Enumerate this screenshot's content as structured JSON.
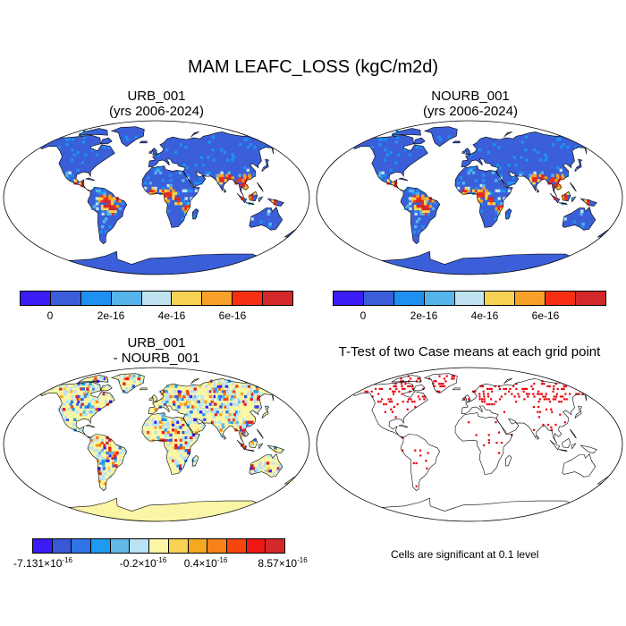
{
  "title": "MAM LEAFC_LOSS (kgC/m2d)",
  "panels": {
    "p1": {
      "line1": "URB_001",
      "line2": "(yrs 2006-2024)"
    },
    "p2": {
      "line1": "NOURB_001",
      "line2": "(yrs 2006-2024)"
    },
    "p3": {
      "line1": "URB_001",
      "line2": "- NOURB_001"
    },
    "p4": {
      "line1": "T-Test of two Case means at each grid point"
    }
  },
  "colorbar_top": {
    "colors": [
      "#3b1cf5",
      "#3a5fd8",
      "#1e90f0",
      "#55b4ea",
      "#bfe3f0",
      "#f8d254",
      "#f7a12a",
      "#f62f12",
      "#d3282b"
    ],
    "labels": [
      "0",
      "2e-16",
      "4e-16",
      "6e-16"
    ]
  },
  "colorbar_diff": {
    "colors": [
      "#3b1cf5",
      "#3958d6",
      "#2e74e6",
      "#1e9bf0",
      "#62b9e8",
      "#b9e2f2",
      "#fbf6a6",
      "#f8d254",
      "#f5a822",
      "#f7821c",
      "#f54610",
      "#ef1712",
      "#d3282b"
    ],
    "labels": {
      "min": {
        "mant": "-7.131",
        "exp": "-16"
      },
      "neg": {
        "mant": "-0.2",
        "exp": "-16"
      },
      "pos": {
        "mant": "0.4",
        "exp": "-16"
      },
      "max": {
        "mant": "8.57",
        "exp": "-16"
      }
    },
    "times": "×10"
  },
  "sig_note": "Cells are significant at 0.1 level",
  "colors": {
    "ocean": "#ffffff",
    "land_base": "#3a5fd8",
    "diff_base": "#fbf6a6",
    "sig": "#e8000b"
  }
}
